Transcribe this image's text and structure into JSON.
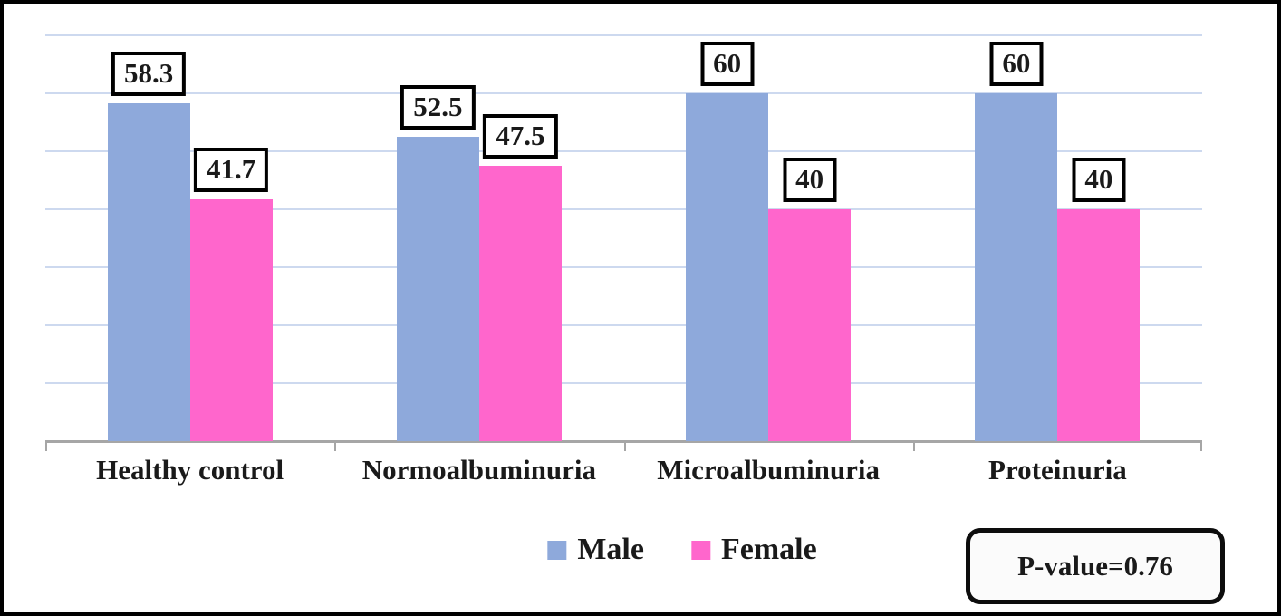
{
  "chart_data": {
    "type": "bar",
    "title": "",
    "xlabel": "",
    "ylabel": "",
    "categories": [
      "Healthy control",
      "Normoalbuminuria",
      "Microalbuminuria",
      "Proteinuria"
    ],
    "series": [
      {
        "name": "Male",
        "color": "#8EA9DB",
        "values": [
          58.3,
          52.5,
          60,
          60
        ]
      },
      {
        "name": "Female",
        "color": "#FF66CC",
        "values": [
          41.7,
          47.5,
          40,
          40
        ]
      }
    ],
    "data_labels": [
      [
        "58.3",
        "52.5",
        "60",
        "60"
      ],
      [
        "41.7",
        "47.5",
        "40",
        "40"
      ]
    ],
    "ylim": [
      0,
      70
    ],
    "gridline_step": 10,
    "grid": true,
    "y_tick_labels_shown": false,
    "legend_position": "bottom-center",
    "data_labels_boxed": true
  },
  "colors": {
    "gridline": "#CDD9EF",
    "axis": "#A6A6A6",
    "label_box_border": "#000000",
    "frame_border": "#000000"
  },
  "annotation": {
    "p_value": "P-value=0.76"
  }
}
